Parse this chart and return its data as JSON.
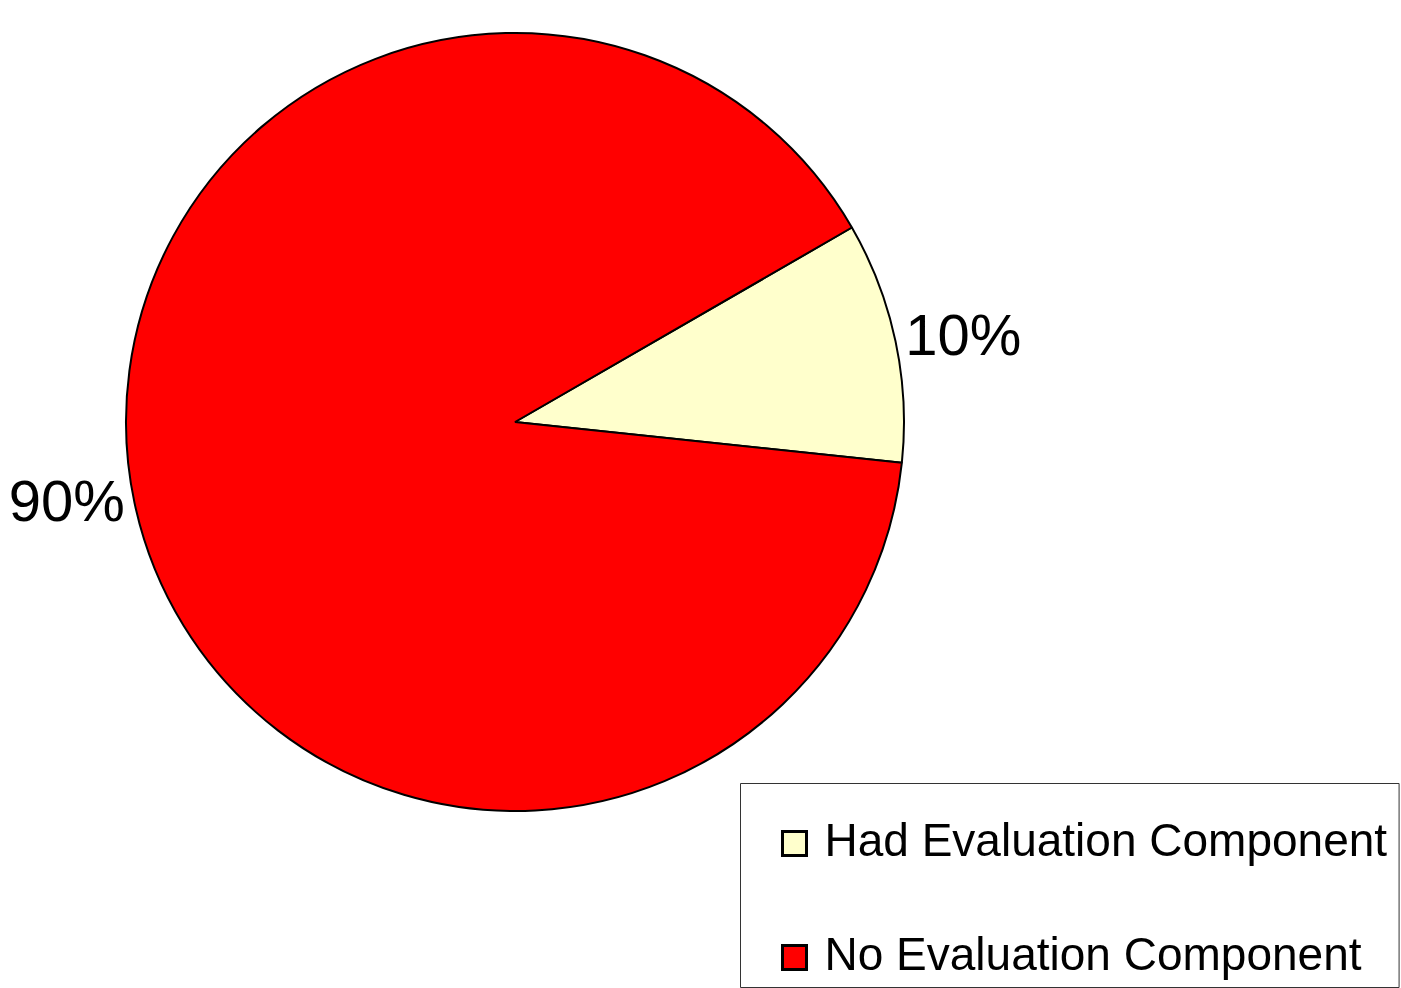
{
  "chart_data": {
    "type": "pie",
    "categories": [
      "Had Evaluation Component",
      "No Evaluation Component"
    ],
    "values": [
      10,
      90
    ],
    "colors": [
      "#ffffcc",
      "#ff0000"
    ],
    "value_labels": [
      "10%",
      "90%"
    ],
    "legend": "bottom right"
  }
}
